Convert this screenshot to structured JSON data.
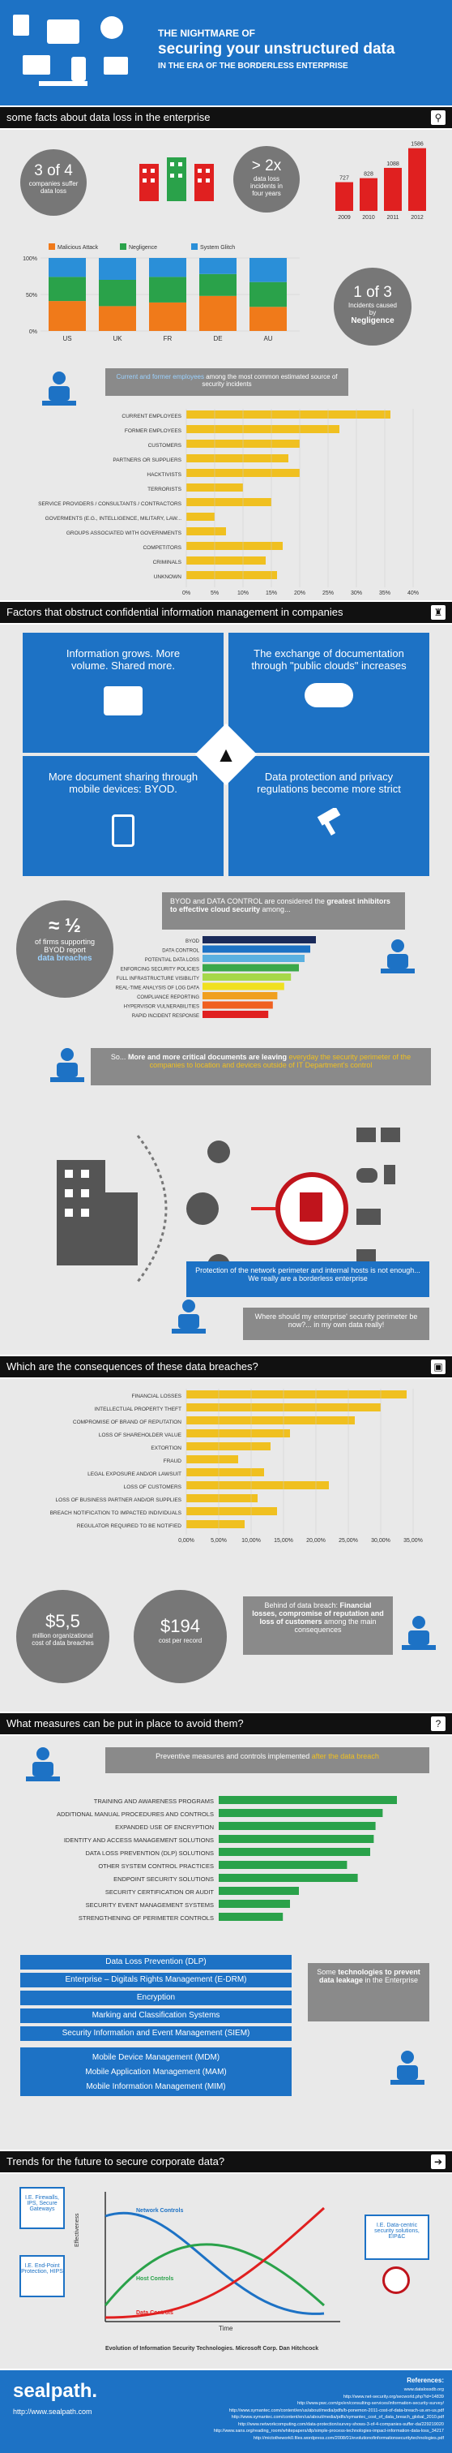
{
  "header": {
    "title_line1": "THE NIGHTMARE OF",
    "title_line2": "securing your unstructured data",
    "title_line3": "IN THE ERA OF THE BORDERLESS ENTERPRISE"
  },
  "sections": {
    "s1": "some facts about data loss in the enterprise",
    "s2": "Factors that obstruct confidential information management in companies",
    "s3": "Which are the consequences of these data breaches?",
    "s4": "What measures can be put in place to avoid them?",
    "s5": "Trends for the future to secure corporate data?"
  },
  "facts": {
    "three_of_four": "3 of 4",
    "three_of_four_sub": "companies suffer data loss",
    "twox": "> 2x",
    "twox_sub": "data loss incidents in four years",
    "one_of_three": "1 of 3",
    "one_of_three_sub1": "Incidents caused by",
    "one_of_three_sub2": "Negligence",
    "callout_pre": "Current and former employees",
    "callout_post": " among the most common estimated source of security incidents"
  },
  "chart_incidents": {
    "type": "bar",
    "categories": [
      "2009",
      "2010",
      "2011",
      "2012"
    ],
    "values": [
      727,
      828,
      1088,
      1586
    ],
    "colors": [
      "#e02020",
      "#e02020",
      "#e02020",
      "#e02020"
    ]
  },
  "chart_causes": {
    "type": "bar",
    "stacked": true,
    "categories": [
      "US",
      "UK",
      "FR",
      "DE",
      "AU"
    ],
    "legend": [
      "Malicious Attack",
      "Negligence",
      "System Glitch"
    ],
    "colors": [
      "#f07a1a",
      "#2aa24a",
      "#2a8fd8"
    ],
    "series": [
      {
        "name": "Malicious Attack",
        "values": [
          41,
          34,
          39,
          48,
          33
        ]
      },
      {
        "name": "Negligence",
        "values": [
          33,
          36,
          35,
          30,
          34
        ]
      },
      {
        "name": "System Glitch",
        "values": [
          26,
          30,
          26,
          22,
          33
        ]
      }
    ],
    "yticks": [
      "0%",
      "50%",
      "100%"
    ]
  },
  "chart_sources": {
    "type": "bar",
    "orientation": "horizontal",
    "categories": [
      "CURRENT EMPLOYEES",
      "FORMER EMPLOYEES",
      "CUSTOMERS",
      "PARTNERS OR SUPPLIERS",
      "HACKTIVISTS",
      "TERRORISTS",
      "SERVICE PROVIDERS / CONSULTANTS / CONTRACTORS",
      "GOVERMENTS (E.G., INTELLIGENCE, MILITARY, LAW...",
      "GROUPS ASSOCIATED WITH GOVERNMENTS",
      "COMPETITORS",
      "CRIMINALS",
      "UNKNOWN"
    ],
    "values": [
      36,
      27,
      20,
      18,
      20,
      10,
      15,
      5,
      7,
      17,
      14,
      16
    ],
    "xticks": [
      "0%",
      "5%",
      "10%",
      "15%",
      "20%",
      "25%",
      "30%",
      "35%",
      "40%"
    ],
    "color": "#f0c020"
  },
  "factors": {
    "t1": "Information grows. More volume. Shared more.",
    "t2": "The exchange of documentation through \"public clouds\" increases",
    "t3": "More document sharing through mobile devices: BYOD.",
    "t4": "Data protection and privacy regulations become more strict",
    "half": "≈ ½",
    "half_sub1": "of firms supporting BYOD report",
    "half_sub2": "data breaches",
    "byod_callout_pre": "BYOD and DATA CONTROL are considered the ",
    "byod_callout_bold": "greatest inhibitors to effective cloud security",
    "byod_callout_post": " among...",
    "perimeter_callout_pre": "So... ",
    "perimeter_callout_bold": "More and more critical documents are leaving",
    "perimeter_callout_post": " everyday the security perimeter of the companies to location and devices outside of IT Department's control",
    "protection_callout": "Protection of the network perimeter and internal hosts is not enough... We really are a borderless enterprise",
    "where_callout": "Where should my enterprise' security perimeter be now?... in my own data really!"
  },
  "chart_inhibitors": {
    "type": "bar",
    "orientation": "horizontal",
    "categories": [
      "BYOD",
      "DATA CONTROL",
      "POTENTIAL DATA LOSS",
      "ENFORCING SECURITY POLICIES",
      "FULL INFRASTRUCTURE VISIBILITY",
      "REAL-TIME ANALYSIS OF LOG DATA",
      "COMPLIANCE REPORTING",
      "HYPERVISOR VULNERABILITIES",
      "RAPID INCIDENT RESPONSE"
    ],
    "values": [
      100,
      95,
      90,
      85,
      78,
      72,
      66,
      62,
      58
    ],
    "colors": [
      "#1a2a5a",
      "#1d72c5",
      "#5ab0e0",
      "#3aa84a",
      "#a6d84a",
      "#f0e020",
      "#f0a020",
      "#f06020",
      "#e02020"
    ]
  },
  "chart_consequences": {
    "type": "bar",
    "orientation": "horizontal",
    "categories": [
      "FINANCIAL LOSSES",
      "INTELLECTUAL PROPERTY THEFT",
      "COMPROMISE OF BRAND OF REPUTATION",
      "LOSS OF SHAREHOLDER VALUE",
      "EXTORTION",
      "FRAUD",
      "LEGAL EXPOSURE AND/OR LAWSUIT",
      "LOSS OF CUSTOMERS",
      "LOSS OF BUSINESS PARTNER AND/OR SUPPLIES",
      "BREACH NOTIFICATION TO IMPACTED INDIVIDUALS",
      "REGULATOR REQUIRED TO BE NOTIFIED"
    ],
    "values": [
      34,
      30,
      26,
      16,
      13,
      8,
      12,
      22,
      11,
      14,
      9
    ],
    "xticks": [
      "0,00%",
      "5,00%",
      "10,00%",
      "15,00%",
      "20,00%",
      "25,00%",
      "30,00%",
      "35,00%"
    ],
    "color": "#f0c020"
  },
  "costs": {
    "c1": "$5,5",
    "c1_sub": "million organizational cost of data breaches",
    "c2": "$194",
    "c2_sub": "cost per record",
    "callout_pre": "Behind of data breach: ",
    "callout_bold": "Financial losses, compromise of reputation and loss of customers",
    "callout_post": " among the main consequences"
  },
  "measures": {
    "callout_pre": "Preventive measures and controls implemented ",
    "callout_hl": "after the data breach"
  },
  "chart_measures": {
    "type": "bar",
    "orientation": "horizontal",
    "categories": [
      "TRAINING AND AWARENESS PROGRAMS",
      "ADDITIONAL MANUAL PROCEDURES AND CONTROLS",
      "EXPANDED USE OF ENCRYPTION",
      "IDENTITY AND ACCESS MANAGEMENT SOLUTIONS",
      "DATA LOSS PREVENTION (DLP) SOLUTIONS",
      "OTHER SYSTEM CONTROL PRACTICES",
      "ENDPOINT SECURITY SOLUTIONS",
      "SECURITY CERTIFICATION OR AUDIT",
      "SECURITY EVENT MANAGEMENT SYSTEMS",
      "STRENGTHENING OF PERIMETER CONTROLS"
    ],
    "values": [
      100,
      92,
      88,
      87,
      85,
      72,
      78,
      45,
      40,
      36
    ],
    "color": "#2aa24a"
  },
  "technologies": {
    "items": [
      "Data Loss Prevention (DLP)",
      "Enterprise – Digitals Rights Management (E-DRM)",
      "Encryption",
      "Marking and Classification Systems",
      "Security Information and Event Management (SIEM)"
    ],
    "mobile": [
      "Mobile Device Management (MDM)",
      "Mobile Application Management (MAM)",
      "Mobile Information Management (MIM)"
    ],
    "callout_pre": "Some ",
    "callout_bold": "technologies to prevent data leakage",
    "callout_post": " in the Enterprise"
  },
  "trends": {
    "box1": "I.E. Firewalls, IPS, Secure Gateways",
    "box2": "I.E. End-Point Protection, HIPS",
    "box3": "I.E. Data-centric security solutions, EIP&C",
    "curve1": "Network Controls",
    "curve2": "Host Controls",
    "curve3": "Data Controls",
    "ylabel": "Effectiveness",
    "xlabel": "Time",
    "caption": "Evolution of Information Security Technologies. Microsoft Corp. Dan Hitchcock"
  },
  "footer": {
    "brand": "sealpath.",
    "url": "http://www.sealpath.com",
    "refs_title": "References:",
    "refs": [
      "www.datalossdb.org",
      "http://www.net-security.org/secworld.php?id=14839",
      "http://www.pwc.com/gx/en/consulting-services/information-security-survey/",
      "http://www.symantec.com/content/en/us/about/media/pdfs/b-ponemon-2011-cost-of-data-breach-us.en-us.pdf",
      "http://www.symantec.com/content/en/us/about/media/pdfs/symantec_cost_of_data_breach_global_2010.pdf",
      "http://www.networkcomputing.com/data-protection/survey-shows-3-of-4-companies-suffer-da/229219020",
      "http://www.sans.org/reading_room/whitepapers/dlp/simple-process-technologies-impact-information-data-loss_34217",
      "http://mictothework0.files.wordpress.com/2008/01/evolutionofinformationsecuritytechnologies.pdf"
    ]
  },
  "colors": {
    "blue": "#1d72c5",
    "dark": "#111111",
    "gray_bubble": "#777777",
    "yellow": "#f0c020",
    "red": "#e02020",
    "green": "#2aa24a"
  }
}
